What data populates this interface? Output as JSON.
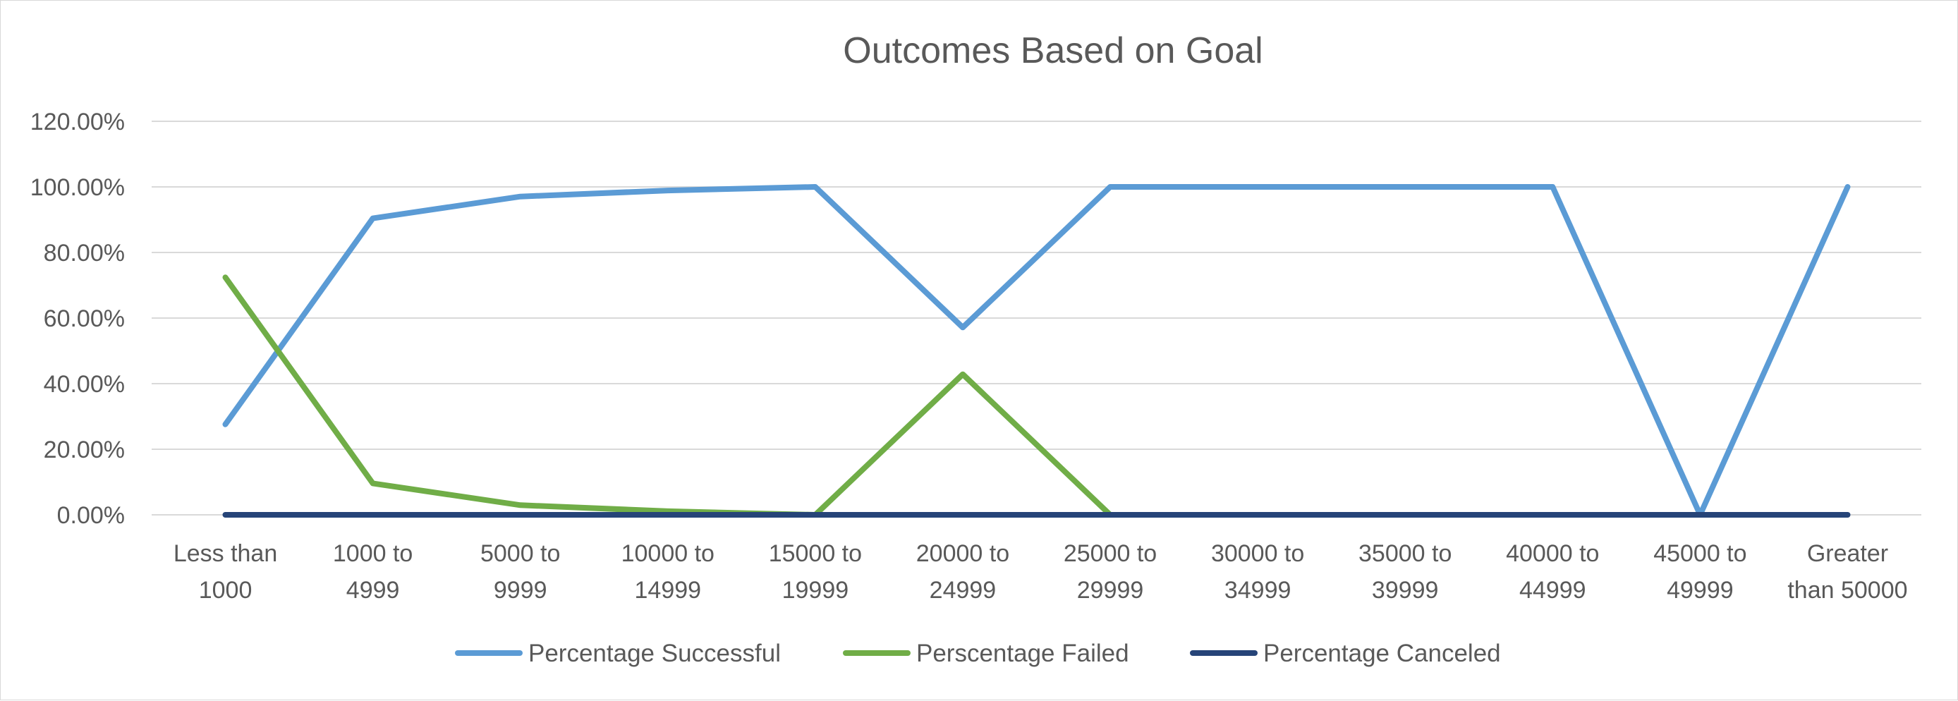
{
  "chart_data": {
    "type": "line",
    "title": "Outcomes Based on Goal",
    "xlabel": "",
    "ylabel": "",
    "categories": [
      [
        "Less than",
        "1000"
      ],
      [
        "1000 to",
        "4999"
      ],
      [
        "5000 to",
        "9999"
      ],
      [
        "10000 to",
        "14999"
      ],
      [
        "15000 to",
        "19999"
      ],
      [
        "20000 to",
        "24999"
      ],
      [
        "25000 to",
        "29999"
      ],
      [
        "30000 to",
        "34999"
      ],
      [
        "35000 to",
        "39999"
      ],
      [
        "40000 to",
        "44999"
      ],
      [
        "45000 to",
        "49999"
      ],
      [
        "Greater",
        "than 50000"
      ]
    ],
    "ylim": [
      0,
      1.2
    ],
    "yticks": [
      0,
      0.2,
      0.4,
      0.6,
      0.8,
      1.0,
      1.2
    ],
    "ytick_labels": [
      "0.00%",
      "20.00%",
      "40.00%",
      "60.00%",
      "80.00%",
      "100.00%",
      "120.00%"
    ],
    "grid": true,
    "legend_position": "bottom",
    "series": [
      {
        "name": "Percentage Successful",
        "color": "#5b9bd5",
        "values": [
          0.2759,
          0.904,
          0.9705,
          0.989,
          1.0,
          0.5714,
          1.0,
          1.0,
          1.0,
          1.0,
          0.0,
          1.0
        ]
      },
      {
        "name": "Perscentage Failed",
        "color": "#70ad47",
        "values": [
          0.7241,
          0.096,
          0.0295,
          0.011,
          0.0,
          0.4286,
          0.0,
          null,
          null,
          null,
          null,
          null
        ]
      },
      {
        "name": "Percentage Canceled",
        "color": "#264478",
        "values": [
          0,
          0,
          0,
          0,
          0,
          0,
          0,
          0,
          0,
          0,
          0,
          0
        ]
      }
    ]
  }
}
